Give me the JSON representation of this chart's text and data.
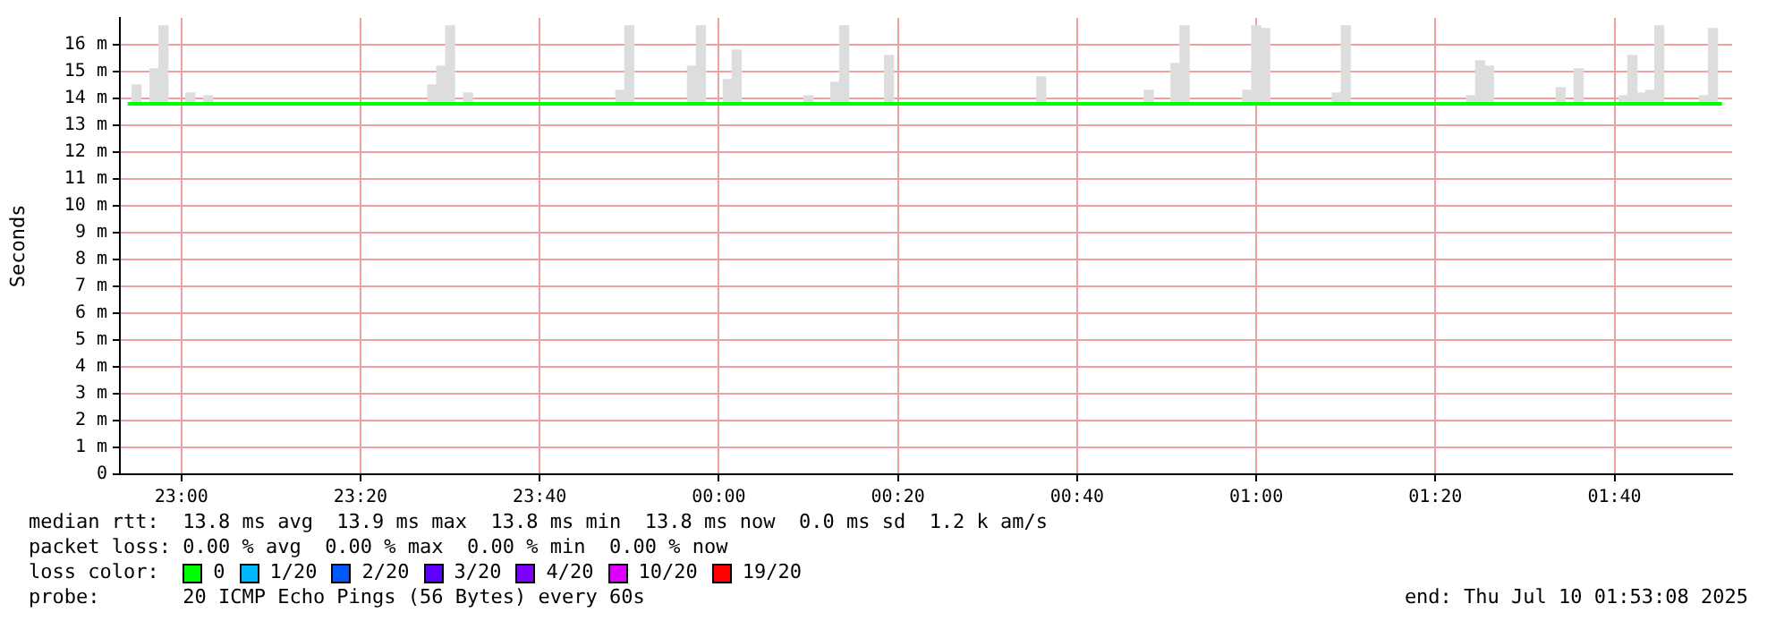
{
  "chart_data": {
    "type": "line",
    "ylabel": "Seconds",
    "legend_title": "loss color:",
    "legend": "bottom",
    "grid": true,
    "marker": "none",
    "xlim": [
      "2025-07-09T22:53:08",
      "2025-07-10T01:53:08"
    ],
    "xticks": [
      {
        "value": "2025-07-09T23:00",
        "label": "23:00"
      },
      {
        "value": "2025-07-09T23:20",
        "label": "23:20"
      },
      {
        "value": "2025-07-09T23:40",
        "label": "23:40"
      },
      {
        "value": "2025-07-10T00:00",
        "label": "00:00"
      },
      {
        "value": "2025-07-10T00:20",
        "label": "00:20"
      },
      {
        "value": "2025-07-10T00:40",
        "label": "00:40"
      },
      {
        "value": "2025-07-10T01:00",
        "label": "01:00"
      },
      {
        "value": "2025-07-10T01:20",
        "label": "01:20"
      },
      {
        "value": "2025-07-10T01:40",
        "label": "01:40"
      }
    ],
    "ylim": [
      0,
      17
    ],
    "yticks": [
      0,
      {
        "value": 1,
        "label": "1 m"
      },
      {
        "value": 2,
        "label": "2 m"
      },
      {
        "value": 3,
        "label": "3 m"
      },
      {
        "value": 4,
        "label": "4 m"
      },
      {
        "value": 5,
        "label": "5 m"
      },
      {
        "value": 6,
        "label": "6 m"
      },
      {
        "value": 7,
        "label": "7 m"
      },
      {
        "value": 8,
        "label": "8 m"
      },
      {
        "value": 9,
        "label": "9 m"
      },
      {
        "value": 10,
        "label": "10 m"
      },
      {
        "value": 11,
        "label": "11 m"
      },
      {
        "value": 12,
        "label": "12 m"
      },
      {
        "value": 13,
        "label": "13 m"
      },
      {
        "value": 14,
        "label": "14 m"
      },
      {
        "value": 15,
        "label": "15 m"
      },
      {
        "value": 16,
        "label": "16 m"
      }
    ],
    "series": [
      {
        "type": "bar",
        "color": "#dddddd",
        "x": [
          "2025-07-09T22:55",
          "2025-07-09T22:57",
          "2025-07-09T22:58",
          "2025-07-09T23:01",
          "2025-07-09T23:03",
          "2025-07-09T23:28",
          "2025-07-09T23:29",
          "2025-07-09T23:30",
          "2025-07-09T23:32",
          "2025-07-09T23:49",
          "2025-07-09T23:50",
          "2025-07-09T23:57",
          "2025-07-09T23:58",
          "2025-07-10T00:01",
          "2025-07-10T00:02",
          "2025-07-10T00:10",
          "2025-07-10T00:13",
          "2025-07-10T00:14",
          "2025-07-10T00:19",
          "2025-07-10T00:36",
          "2025-07-10T00:48",
          "2025-07-10T00:51",
          "2025-07-10T00:52",
          "2025-07-10T00:59",
          "2025-07-10T01:00",
          "2025-07-10T01:01",
          "2025-07-10T01:09",
          "2025-07-10T01:10",
          "2025-07-10T01:24",
          "2025-07-10T01:25",
          "2025-07-10T01:26",
          "2025-07-10T01:34",
          "2025-07-10T01:36",
          "2025-07-10T01:41",
          "2025-07-10T01:42",
          "2025-07-10T01:43",
          "2025-07-10T01:44",
          "2025-07-10T01:45",
          "2025-07-10T01:50",
          "2025-07-10T01:51"
        ],
        "base": [
          13.8,
          13.8,
          13.8,
          13.8,
          13.8,
          13.8,
          13.8,
          13.8,
          13.8,
          13.8,
          13.8,
          13.8,
          13.8,
          13.8,
          13.8,
          13.8,
          13.8,
          13.8,
          13.8,
          13.8,
          13.8,
          13.8,
          13.8,
          13.8,
          13.8,
          13.8,
          13.8,
          13.8,
          13.8,
          13.8,
          13.8,
          13.8,
          13.8,
          13.8,
          13.8,
          13.8,
          13.8,
          13.8,
          13.8,
          13.8
        ],
        "values": [
          0.7,
          1.3,
          2.9,
          0.4,
          0.3,
          0.7,
          1.4,
          2.9,
          0.4,
          0.5,
          2.9,
          1.4,
          2.9,
          0.9,
          2.0,
          0.3,
          0.8,
          2.9,
          1.8,
          1.0,
          0.5,
          1.5,
          2.9,
          0.5,
          2.9,
          2.8,
          0.4,
          2.9,
          0.3,
          1.6,
          1.4,
          0.6,
          1.3,
          0.3,
          1.8,
          0.4,
          0.5,
          2.9,
          0.3,
          2.8
        ]
      },
      {
        "name": "0",
        "color": "#00ff00",
        "x": [
          "2025-07-09T22:54",
          "2025-07-10T01:52"
        ],
        "values": [
          13.8,
          13.8
        ]
      },
      {
        "name": "1/20",
        "color": "#00b8ff"
      },
      {
        "name": "2/20",
        "color": "#0059ff"
      },
      {
        "name": "3/20",
        "color": "#5e00ff"
      },
      {
        "name": "4/20",
        "color": "#7e00ff"
      },
      {
        "name": "10/20",
        "color": "#dd00ff"
      },
      {
        "name": "19/20",
        "color": "#ff0000"
      }
    ],
    "annotations": [
      "median rtt:  13.8 ms avg  13.9 ms max  13.8 ms min  13.8 ms now  0.0 ms sd  1.2 k am/s",
      "packet loss: 0.00 % avg  0.00 % max  0.00 % min  0.00 % now",
      "probe:       20 ICMP Echo Pings (56 Bytes) every 60s",
      "end: Thu Jul 10 01:53:08 2025"
    ]
  }
}
